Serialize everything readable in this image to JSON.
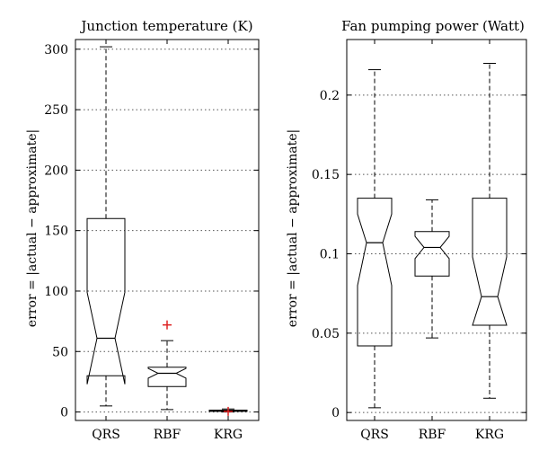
{
  "chart_data": [
    {
      "type": "box",
      "title": "Junction temperature (K)",
      "ylabel": "error = |actual − approximate|",
      "xlabel": "",
      "categories": [
        "QRS",
        "RBF",
        "KRG"
      ],
      "ylim": [
        -7,
        308
      ],
      "yticks": [
        0,
        50,
        100,
        150,
        200,
        250,
        300
      ],
      "ytick_labels": [
        "0",
        "50",
        "100",
        "150",
        "200",
        "250",
        "300"
      ],
      "grid": "horizontal dotted",
      "boxes": [
        {
          "whisker_low": 5,
          "q1": 30,
          "median": 61,
          "q3": 160,
          "whisker_high": 302,
          "notch_low": 23,
          "notch_high": 99,
          "outliers": []
        },
        {
          "whisker_low": 2,
          "q1": 21,
          "median": 32,
          "q3": 37,
          "whisker_high": 59,
          "notch_low": 28,
          "notch_high": 36,
          "outliers": [
            72
          ]
        },
        {
          "whisker_low": 0,
          "q1": 0.5,
          "median": 1,
          "q3": 1.5,
          "whisker_high": 2.5,
          "notch_low": 0.7,
          "notch_high": 1.3,
          "outliers": [
            0.5
          ]
        }
      ]
    },
    {
      "type": "box",
      "title": "Fan pumping power (Watt)",
      "ylabel": "error = |actual − approximate|",
      "xlabel": "",
      "categories": [
        "QRS",
        "RBF",
        "KRG"
      ],
      "ylim": [
        -0.005,
        0.235
      ],
      "yticks": [
        0,
        0.05,
        0.1,
        0.15,
        0.2
      ],
      "ytick_labels": [
        "0",
        "0.05",
        "0.1",
        "0.15",
        "0.2"
      ],
      "grid": "horizontal dotted",
      "boxes": [
        {
          "whisker_low": 0.003,
          "q1": 0.042,
          "median": 0.107,
          "q3": 0.135,
          "whisker_high": 0.216,
          "notch_low": 0.08,
          "notch_high": 0.125,
          "outliers": []
        },
        {
          "whisker_low": 0.047,
          "q1": 0.086,
          "median": 0.104,
          "q3": 0.114,
          "whisker_high": 0.134,
          "notch_low": 0.097,
          "notch_high": 0.111,
          "outliers": []
        },
        {
          "whisker_low": 0.009,
          "q1": 0.055,
          "median": 0.073,
          "q3": 0.135,
          "whisker_high": 0.22,
          "notch_low": 0.055,
          "notch_high": 0.098,
          "outliers": []
        }
      ]
    }
  ]
}
